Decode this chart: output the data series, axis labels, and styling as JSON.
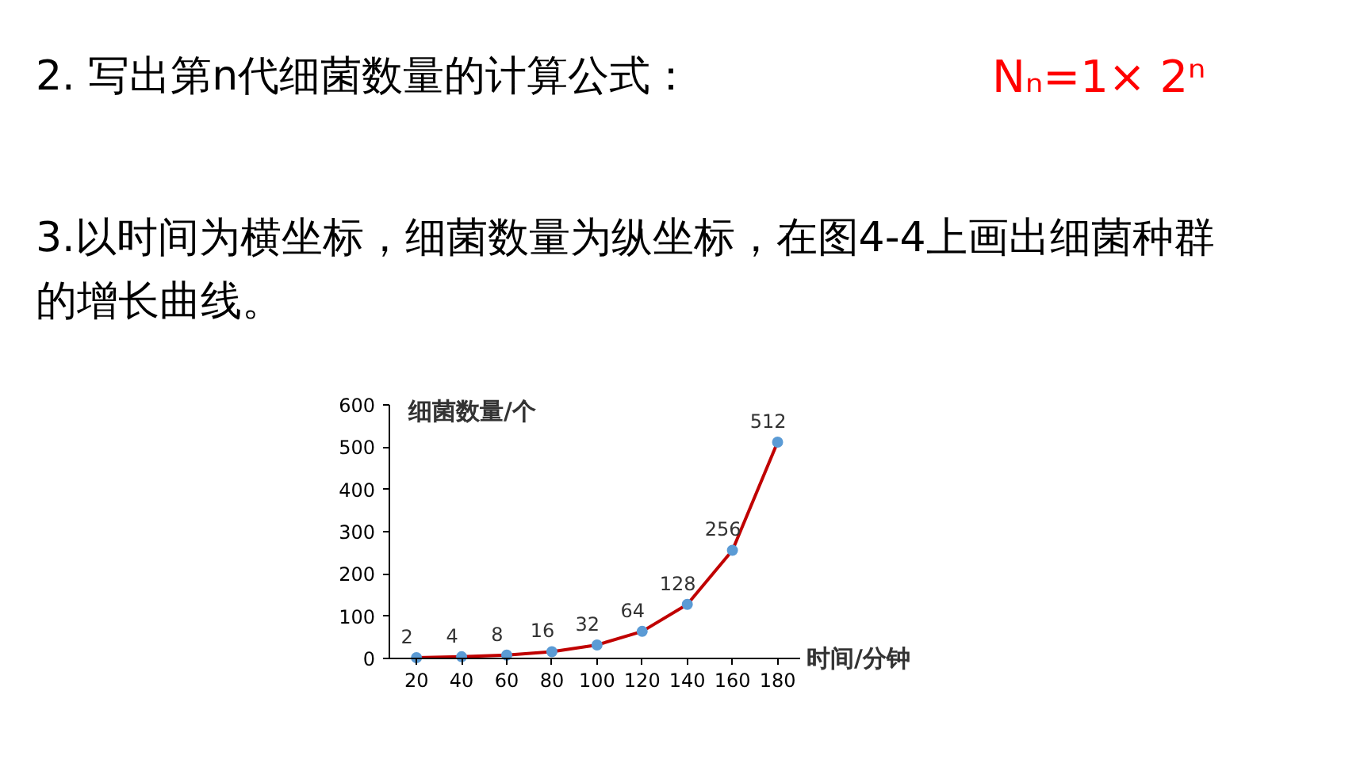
{
  "chart_data": {
    "type": "line",
    "title": "2. 写出第n代细菌数量的计算公式：",
    "subtitle": "3.以时间为横坐标，细菌数量为纵坐标，在图4-4上画出细菌种群的增长曲线。",
    "annotations": [
      "Nₙ=1× 2ⁿ"
    ],
    "ylabel": "细菌数量/个",
    "xlabel": "时间/分钟",
    "x": [
      20,
      40,
      60,
      80,
      100,
      120,
      140,
      160,
      180
    ],
    "series": [
      {
        "color": "#c00000",
        "values": [
          2,
          4,
          8,
          16,
          32,
          64,
          128,
          256,
          512
        ]
      }
    ],
    "marker": "circle",
    "data_labels": true,
    "xlim": [
      8,
      190
    ],
    "xticks": [
      20,
      40,
      60,
      80,
      100,
      120,
      140,
      160,
      180
    ],
    "ylim": [
      0,
      600
    ],
    "yticks": [
      0,
      100,
      200,
      300,
      400,
      500,
      600
    ],
    "grid": false
  }
}
